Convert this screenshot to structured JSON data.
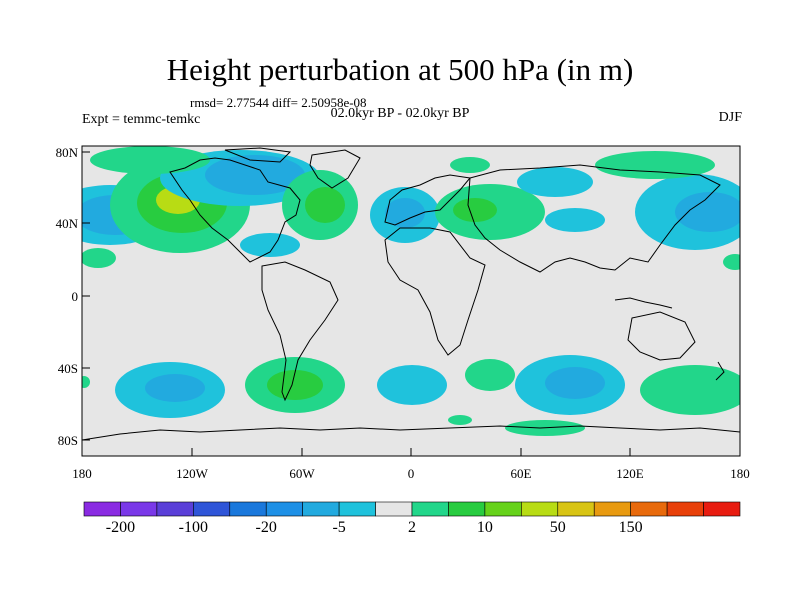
{
  "title": "Height perturbation at 500 hPa (in m)",
  "stats": "rmsd= 2.77544 diff= 2.50958e-08",
  "period": "02.0kyr BP - 02.0kyr BP",
  "experiment": "Expt = temmc-temkc",
  "season": "DJF",
  "lat_labels": [
    "80N",
    "40N",
    "0",
    "40S",
    "80S"
  ],
  "lon_labels": [
    "180",
    "120W",
    "60W",
    "0",
    "60E",
    "120E",
    "180"
  ],
  "colorbar": {
    "labels": [
      "-200",
      "-100",
      "-20",
      "-5",
      "2",
      "10",
      "50",
      "150"
    ],
    "colors": [
      "#8a2be2",
      "#7a38e8",
      "#5a3fd8",
      "#2f55d8",
      "#1a78dc",
      "#1e90e6",
      "#22aadf",
      "#1fc2dc",
      "#e6e6e6",
      "#22d68a",
      "#28cc40",
      "#66d21a",
      "#b8dc14",
      "#d8c414",
      "#e89a10",
      "#e86a0c",
      "#e8400a",
      "#e81c10"
    ]
  },
  "colors": {
    "land_outline": "#000000",
    "neutral": "#e6e6e6"
  }
}
